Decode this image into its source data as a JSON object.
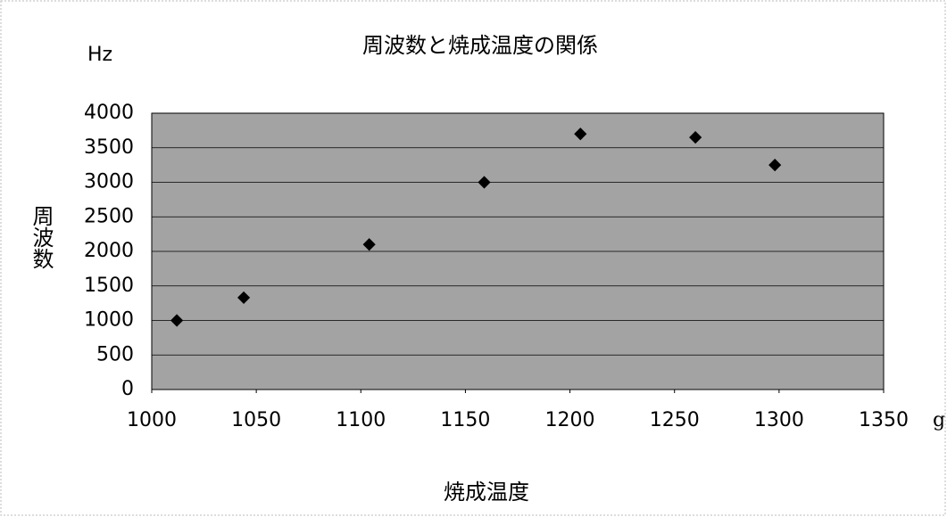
{
  "chart_data": {
    "type": "scatter",
    "title": "周波数と焼成温度の関係",
    "x_label": "焼成温度",
    "y_label": "周波数",
    "y_unit": "Hz",
    "x_unit": "g",
    "x": [
      1012,
      1044,
      1104,
      1159,
      1205,
      1260,
      1298
    ],
    "values": [
      1000,
      1330,
      2100,
      3000,
      3700,
      3650,
      3250
    ],
    "color": "#000000",
    "plot_color": "#a3a3a3",
    "xlim": [
      1000,
      1350
    ],
    "xticks": [
      1000,
      1050,
      1100,
      1150,
      1200,
      1250,
      1300,
      1350
    ],
    "ylim": [
      0,
      4000
    ],
    "yticks": [
      0,
      500,
      1000,
      1500,
      2000,
      2500,
      3000,
      3500,
      4000
    ],
    "grid": true
  }
}
